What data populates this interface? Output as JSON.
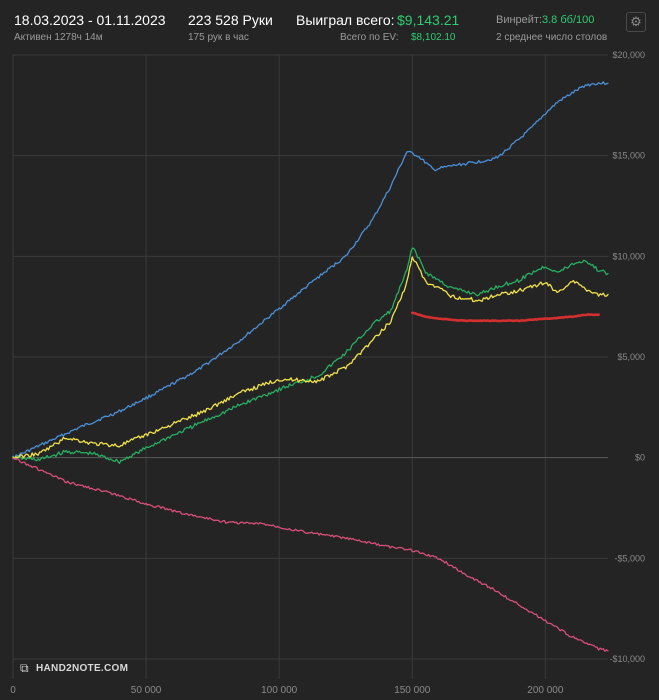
{
  "header": {
    "date_range": "18.03.2023 - 01.11.2023",
    "active": "Активен 1278ч 14м",
    "hands": "223 528 Руки",
    "hands_rate": "175 рук в час",
    "won_label": "Выиграл всего:",
    "won_value": "$9,143.21",
    "ev_label": "Всего по EV:",
    "ev_value": "$8,102.10",
    "winrate_label": "Винрейт:",
    "winrate_value": "3.8 бб/100",
    "tables": "2 среднее число столов",
    "settings_icon": "gear-icon"
  },
  "logo": {
    "text": "HAND2NOTE.COM"
  },
  "colors": {
    "background": "#242424",
    "grid": "#3a3a3a",
    "zero_line": "#5a5a5a",
    "accent_green": "#2ecc71"
  },
  "chart_data": {
    "type": "line",
    "xlim": [
      0,
      223528
    ],
    "ylim": [
      -10000,
      20000
    ],
    "x_ticks": [
      0,
      50000,
      100000,
      150000,
      200000
    ],
    "x_tick_labels": [
      "0",
      "50 000",
      "100 000",
      "150 000",
      "200 000"
    ],
    "y_ticks": [
      20000,
      15000,
      10000,
      5000,
      0,
      -5000,
      -10000
    ],
    "y_tick_labels": [
      "$20,000",
      "$15,000",
      "$10,000",
      "$5,000",
      "$0",
      "-$5,000",
      "-$10,000"
    ],
    "series": [
      {
        "color": "#4a90d9",
        "x": [
          0,
          10000,
          25000,
          40000,
          55000,
          70000,
          85000,
          100000,
          115000,
          125000,
          135000,
          142000,
          148000,
          152000,
          158000,
          165000,
          175000,
          182000,
          190000,
          195000,
          200000,
          205000,
          210000,
          215000,
          220000,
          223528
        ],
        "values": [
          0,
          600,
          1500,
          2300,
          3300,
          4400,
          5800,
          7400,
          9000,
          10000,
          11800,
          13500,
          15200,
          15000,
          14300,
          14500,
          14700,
          14900,
          15800,
          16400,
          17100,
          17700,
          18100,
          18500,
          18600,
          18600
        ]
      },
      {
        "color": "#27ae60",
        "x": [
          0,
          10000,
          20000,
          30000,
          40000,
          55000,
          70000,
          85000,
          100000,
          115000,
          125000,
          135000,
          142000,
          148000,
          150000,
          152000,
          155000,
          160000,
          165000,
          175000,
          182000,
          190000,
          195000,
          200000,
          205000,
          210000,
          215000,
          220000,
          223528
        ],
        "values": [
          0,
          -100,
          300,
          200,
          -200,
          800,
          1700,
          2600,
          3400,
          4100,
          5200,
          6600,
          7300,
          9300,
          10500,
          10000,
          9200,
          8800,
          8400,
          8100,
          8500,
          8800,
          9200,
          9500,
          9200,
          9600,
          9800,
          9300,
          9143
        ]
      },
      {
        "color": "#f1e34a",
        "x": [
          0,
          10000,
          20000,
          30000,
          40000,
          55000,
          70000,
          85000,
          100000,
          115000,
          125000,
          135000,
          142000,
          148000,
          150000,
          152000,
          155000,
          160000,
          165000,
          175000,
          182000,
          190000,
          195000,
          200000,
          205000,
          210000,
          215000,
          220000,
          223528
        ],
        "values": [
          0,
          200,
          1000,
          700,
          600,
          1400,
          2200,
          3200,
          3900,
          3800,
          4500,
          5800,
          6800,
          8700,
          10000,
          9500,
          8700,
          8400,
          8000,
          7800,
          8100,
          8300,
          8500,
          8700,
          8200,
          8800,
          8400,
          8100,
          8102
        ]
      },
      {
        "color": "#d32f2f",
        "x": [
          150000,
          155000,
          160000,
          170000,
          180000,
          190000,
          200000,
          210000,
          215000,
          220000
        ],
        "values": [
          7200,
          7000,
          6900,
          6800,
          6800,
          6800,
          6900,
          7000,
          7100,
          7100
        ]
      },
      {
        "color": "#d94f7a",
        "x": [
          0,
          10000,
          20000,
          35000,
          50000,
          65000,
          80000,
          95000,
          110000,
          125000,
          140000,
          150000,
          160000,
          170000,
          180000,
          190000,
          200000,
          210000,
          215000,
          220000,
          223528
        ],
        "values": [
          0,
          -600,
          -1200,
          -1700,
          -2300,
          -2800,
          -3200,
          -3300,
          -3700,
          -4000,
          -4400,
          -4600,
          -5000,
          -5800,
          -6500,
          -7300,
          -8100,
          -8900,
          -9200,
          -9500,
          -9600
        ]
      }
    ]
  }
}
